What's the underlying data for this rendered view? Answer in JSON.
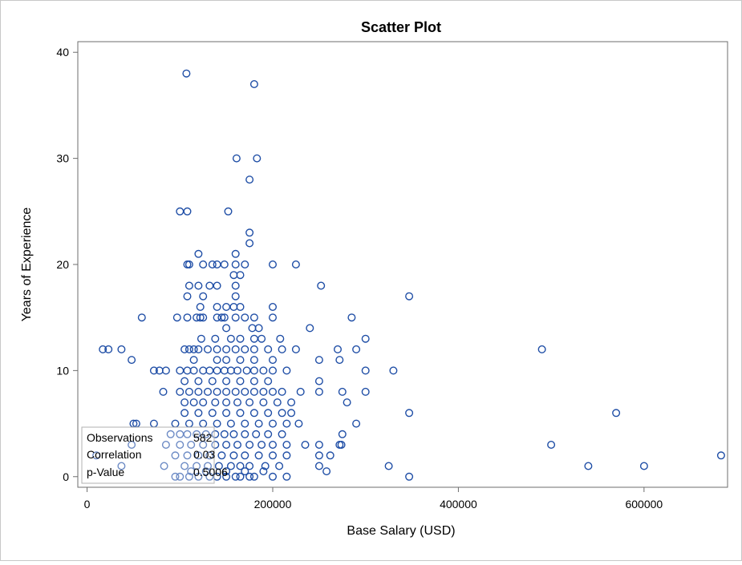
{
  "chart_data": {
    "type": "scatter",
    "title": "Scatter Plot",
    "xlabel": "Base Salary (USD)",
    "ylabel": "Years of Experience",
    "xlim": [
      -10000,
      690000
    ],
    "ylim": [
      -1,
      41
    ],
    "x_ticks": [
      0,
      200000,
      400000,
      600000
    ],
    "y_ticks": [
      0,
      10,
      20,
      30,
      40
    ],
    "grid": false,
    "marker": "open-circle",
    "marker_color": "#1f4ea6",
    "stats": [
      {
        "label": "Observations",
        "value": "582"
      },
      {
        "label": "Correlation",
        "value": "0.03"
      },
      {
        "label": "p-Value",
        "value": "0.5006"
      }
    ],
    "points": [
      [
        107000,
        38
      ],
      [
        180000,
        37
      ],
      [
        161000,
        30
      ],
      [
        183000,
        30
      ],
      [
        175000,
        28
      ],
      [
        100000,
        25
      ],
      [
        108000,
        25
      ],
      [
        152000,
        25
      ],
      [
        175000,
        23
      ],
      [
        175000,
        22
      ],
      [
        120000,
        21
      ],
      [
        160000,
        21
      ],
      [
        108000,
        20
      ],
      [
        110000,
        20
      ],
      [
        125000,
        20
      ],
      [
        135000,
        20
      ],
      [
        140000,
        20
      ],
      [
        148000,
        20
      ],
      [
        160000,
        20
      ],
      [
        170000,
        20
      ],
      [
        200000,
        20
      ],
      [
        225000,
        20
      ],
      [
        165000,
        19
      ],
      [
        158000,
        19
      ],
      [
        110000,
        18
      ],
      [
        120000,
        18
      ],
      [
        132000,
        18
      ],
      [
        140000,
        18
      ],
      [
        160000,
        18
      ],
      [
        252000,
        18
      ],
      [
        108000,
        17
      ],
      [
        125000,
        17
      ],
      [
        160000,
        17
      ],
      [
        347000,
        17
      ],
      [
        122000,
        16
      ],
      [
        140000,
        16
      ],
      [
        150000,
        16
      ],
      [
        158000,
        16
      ],
      [
        165000,
        16
      ],
      [
        200000,
        16
      ],
      [
        59000,
        15
      ],
      [
        97000,
        15
      ],
      [
        108000,
        15
      ],
      [
        118000,
        15
      ],
      [
        122000,
        15
      ],
      [
        125000,
        15
      ],
      [
        140000,
        15
      ],
      [
        145000,
        15
      ],
      [
        148000,
        15
      ],
      [
        160000,
        15
      ],
      [
        170000,
        15
      ],
      [
        180000,
        15
      ],
      [
        200000,
        15
      ],
      [
        285000,
        15
      ],
      [
        150000,
        14
      ],
      [
        178000,
        14
      ],
      [
        185000,
        14
      ],
      [
        240000,
        14
      ],
      [
        123000,
        13
      ],
      [
        138000,
        13
      ],
      [
        155000,
        13
      ],
      [
        165000,
        13
      ],
      [
        180000,
        13
      ],
      [
        188000,
        13
      ],
      [
        208000,
        13
      ],
      [
        300000,
        13
      ],
      [
        17000,
        12
      ],
      [
        23000,
        12
      ],
      [
        37000,
        12
      ],
      [
        105000,
        12
      ],
      [
        110000,
        12
      ],
      [
        115000,
        12
      ],
      [
        120000,
        12
      ],
      [
        130000,
        12
      ],
      [
        140000,
        12
      ],
      [
        150000,
        12
      ],
      [
        160000,
        12
      ],
      [
        170000,
        12
      ],
      [
        180000,
        12
      ],
      [
        195000,
        12
      ],
      [
        210000,
        12
      ],
      [
        225000,
        12
      ],
      [
        270000,
        12
      ],
      [
        290000,
        12
      ],
      [
        490000,
        12
      ],
      [
        48000,
        11
      ],
      [
        115000,
        11
      ],
      [
        140000,
        11
      ],
      [
        150000,
        11
      ],
      [
        165000,
        11
      ],
      [
        180000,
        11
      ],
      [
        200000,
        11
      ],
      [
        250000,
        11
      ],
      [
        272000,
        11
      ],
      [
        72000,
        10
      ],
      [
        78000,
        10
      ],
      [
        85000,
        10
      ],
      [
        100000,
        10
      ],
      [
        108000,
        10
      ],
      [
        115000,
        10
      ],
      [
        125000,
        10
      ],
      [
        132000,
        10
      ],
      [
        140000,
        10
      ],
      [
        148000,
        10
      ],
      [
        155000,
        10
      ],
      [
        162000,
        10
      ],
      [
        172000,
        10
      ],
      [
        180000,
        10
      ],
      [
        190000,
        10
      ],
      [
        200000,
        10
      ],
      [
        215000,
        10
      ],
      [
        300000,
        10
      ],
      [
        330000,
        10
      ],
      [
        105000,
        9
      ],
      [
        120000,
        9
      ],
      [
        135000,
        9
      ],
      [
        150000,
        9
      ],
      [
        165000,
        9
      ],
      [
        180000,
        9
      ],
      [
        195000,
        9
      ],
      [
        250000,
        9
      ],
      [
        82000,
        8
      ],
      [
        100000,
        8
      ],
      [
        110000,
        8
      ],
      [
        120000,
        8
      ],
      [
        130000,
        8
      ],
      [
        140000,
        8
      ],
      [
        150000,
        8
      ],
      [
        160000,
        8
      ],
      [
        170000,
        8
      ],
      [
        180000,
        8
      ],
      [
        190000,
        8
      ],
      [
        200000,
        8
      ],
      [
        210000,
        8
      ],
      [
        230000,
        8
      ],
      [
        250000,
        8
      ],
      [
        275000,
        8
      ],
      [
        300000,
        8
      ],
      [
        105000,
        7
      ],
      [
        115000,
        7
      ],
      [
        125000,
        7
      ],
      [
        138000,
        7
      ],
      [
        150000,
        7
      ],
      [
        162000,
        7
      ],
      [
        175000,
        7
      ],
      [
        190000,
        7
      ],
      [
        205000,
        7
      ],
      [
        220000,
        7
      ],
      [
        280000,
        7
      ],
      [
        105000,
        6
      ],
      [
        120000,
        6
      ],
      [
        135000,
        6
      ],
      [
        150000,
        6
      ],
      [
        165000,
        6
      ],
      [
        180000,
        6
      ],
      [
        195000,
        6
      ],
      [
        210000,
        6
      ],
      [
        220000,
        6
      ],
      [
        347000,
        6
      ],
      [
        570000,
        6
      ],
      [
        50000,
        5
      ],
      [
        53000,
        5
      ],
      [
        72000,
        5
      ],
      [
        95000,
        5
      ],
      [
        110000,
        5
      ],
      [
        125000,
        5
      ],
      [
        140000,
        5
      ],
      [
        155000,
        5
      ],
      [
        170000,
        5
      ],
      [
        185000,
        5
      ],
      [
        200000,
        5
      ],
      [
        215000,
        5
      ],
      [
        228000,
        5
      ],
      [
        290000,
        5
      ],
      [
        90000,
        4
      ],
      [
        100000,
        4
      ],
      [
        108000,
        4
      ],
      [
        118000,
        4
      ],
      [
        128000,
        4
      ],
      [
        138000,
        4
      ],
      [
        148000,
        4
      ],
      [
        158000,
        4
      ],
      [
        170000,
        4
      ],
      [
        182000,
        4
      ],
      [
        195000,
        4
      ],
      [
        210000,
        4
      ],
      [
        275000,
        4
      ],
      [
        48000,
        3
      ],
      [
        85000,
        3
      ],
      [
        100000,
        3
      ],
      [
        112000,
        3
      ],
      [
        125000,
        3
      ],
      [
        138000,
        3
      ],
      [
        150000,
        3
      ],
      [
        162000,
        3
      ],
      [
        175000,
        3
      ],
      [
        188000,
        3
      ],
      [
        200000,
        3
      ],
      [
        215000,
        3
      ],
      [
        235000,
        3
      ],
      [
        250000,
        3
      ],
      [
        272000,
        3
      ],
      [
        274000,
        3
      ],
      [
        500000,
        3
      ],
      [
        10000,
        2
      ],
      [
        95000,
        2
      ],
      [
        108000,
        2
      ],
      [
        120000,
        2
      ],
      [
        132000,
        2
      ],
      [
        145000,
        2
      ],
      [
        158000,
        2
      ],
      [
        170000,
        2
      ],
      [
        185000,
        2
      ],
      [
        200000,
        2
      ],
      [
        215000,
        2
      ],
      [
        250000,
        2
      ],
      [
        262000,
        2
      ],
      [
        683000,
        2
      ],
      [
        37000,
        1
      ],
      [
        83000,
        1
      ],
      [
        105000,
        1
      ],
      [
        118000,
        1
      ],
      [
        130000,
        1
      ],
      [
        142000,
        1
      ],
      [
        155000,
        1
      ],
      [
        165000,
        1
      ],
      [
        175000,
        1
      ],
      [
        192000,
        1
      ],
      [
        207000,
        1
      ],
      [
        250000,
        1
      ],
      [
        325000,
        1
      ],
      [
        540000,
        1
      ],
      [
        600000,
        1
      ],
      [
        112000,
        0.5
      ],
      [
        128000,
        0.5
      ],
      [
        150000,
        0.5
      ],
      [
        170000,
        0.5
      ],
      [
        190000,
        0.5
      ],
      [
        258000,
        0.5
      ],
      [
        95000,
        0
      ],
      [
        100000,
        0
      ],
      [
        110000,
        0
      ],
      [
        120000,
        0
      ],
      [
        132000,
        0
      ],
      [
        140000,
        0
      ],
      [
        150000,
        0
      ],
      [
        160000,
        0
      ],
      [
        165000,
        0
      ],
      [
        175000,
        0
      ],
      [
        180000,
        0
      ],
      [
        200000,
        0
      ],
      [
        215000,
        0
      ],
      [
        347000,
        0
      ]
    ]
  }
}
